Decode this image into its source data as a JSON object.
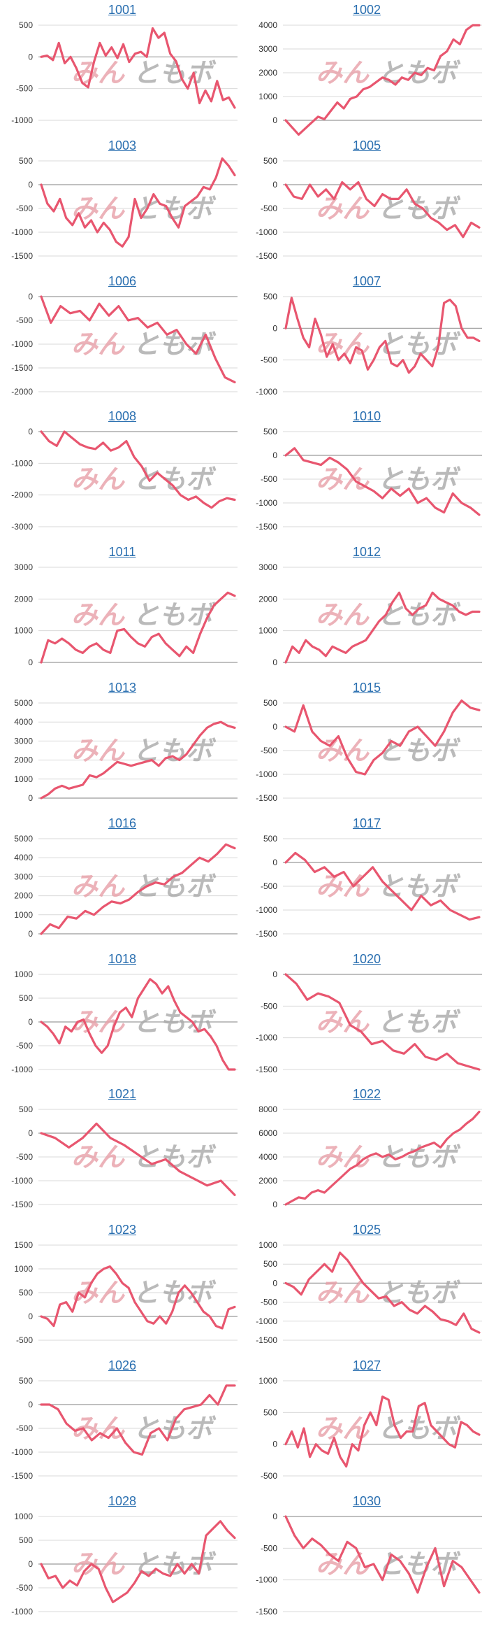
{
  "line_color": "#e8566f",
  "watermark": {
    "left": "みん",
    "right": "ともボ"
  },
  "chart_data": [
    {
      "type": "line",
      "title": "1001",
      "ylim": [
        -1000,
        500
      ],
      "yticks": [
        500,
        0,
        -500,
        -1000
      ],
      "y": [
        0,
        20,
        -50,
        220,
        -100,
        0,
        -180,
        -410,
        -480,
        -80,
        220,
        20,
        150,
        -20,
        200,
        -80,
        50,
        80,
        0,
        450,
        300,
        380,
        50,
        -70,
        -350,
        -500,
        -250,
        -730,
        -530,
        -700,
        -380,
        -680,
        -640,
        -800
      ]
    },
    {
      "type": "line",
      "title": "1002",
      "ylim": [
        0,
        4000
      ],
      "yticks": [
        4000,
        3000,
        2000,
        1000,
        0
      ],
      "y": [
        0,
        -300,
        -600,
        -350,
        -100,
        150,
        50,
        400,
        750,
        500,
        900,
        1000,
        1300,
        1400,
        1600,
        1800,
        1700,
        1500,
        1800,
        1700,
        2000,
        1900,
        2200,
        2100,
        2700,
        2900,
        3400,
        3200,
        3800,
        4000,
        4000
      ]
    },
    {
      "type": "line",
      "title": "1003",
      "ylim": [
        -1500,
        500
      ],
      "yticks": [
        500,
        0,
        -500,
        -1000,
        -1500
      ],
      "y": [
        0,
        -400,
        -560,
        -300,
        -700,
        -850,
        -600,
        -900,
        -750,
        -1000,
        -800,
        -950,
        -1200,
        -1300,
        -1100,
        -300,
        -700,
        -500,
        -200,
        -400,
        -450,
        -700,
        -900,
        -450,
        -350,
        -250,
        -50,
        -100,
        150,
        550,
        400,
        200
      ]
    },
    {
      "type": "line",
      "title": "1005",
      "ylim": [
        -1500,
        500
      ],
      "yticks": [
        500,
        0,
        -500,
        -1000,
        -1500
      ],
      "y": [
        0,
        -250,
        -300,
        0,
        -250,
        -100,
        -300,
        50,
        -100,
        50,
        -300,
        -450,
        -200,
        -300,
        -300,
        -100,
        -400,
        -500,
        -700,
        -800,
        -950,
        -850,
        -1100,
        -800,
        -900
      ]
    },
    {
      "type": "line",
      "title": "1006",
      "ylim": [
        -2000,
        0
      ],
      "yticks": [
        0,
        -500,
        -1000,
        -1500,
        -2000
      ],
      "y": [
        0,
        -550,
        -200,
        -350,
        -300,
        -500,
        -150,
        -400,
        -200,
        -500,
        -450,
        -650,
        -550,
        -800,
        -700,
        -1000,
        -1200,
        -800,
        -1300,
        -1700,
        -1800
      ]
    },
    {
      "type": "line",
      "title": "1007",
      "ylim": [
        -1000,
        500
      ],
      "yticks": [
        500,
        0,
        -500,
        -1000
      ],
      "y": [
        0,
        480,
        150,
        -150,
        -300,
        150,
        -100,
        -450,
        -250,
        -500,
        -400,
        -550,
        -300,
        -350,
        -650,
        -500,
        -300,
        -200,
        -550,
        -600,
        -500,
        -700,
        -600,
        -400,
        -500,
        -600,
        -300,
        400,
        450,
        350,
        0,
        -150,
        -150,
        -200
      ]
    },
    {
      "type": "line",
      "title": "1008",
      "ylim": [
        -3000,
        0
      ],
      "yticks": [
        0,
        -1000,
        -2000,
        -3000
      ],
      "y": [
        0,
        -300,
        -450,
        0,
        -200,
        -400,
        -500,
        -550,
        -350,
        -600,
        -500,
        -300,
        -800,
        -1100,
        -1550,
        -1300,
        -1500,
        -1700,
        -2000,
        -2150,
        -2050,
        -2250,
        -2400,
        -2200,
        -2100,
        -2150
      ]
    },
    {
      "type": "line",
      "title": "1010",
      "ylim": [
        -1500,
        500
      ],
      "yticks": [
        500,
        0,
        -500,
        -1000,
        -1500
      ],
      "y": [
        0,
        150,
        -100,
        -150,
        -200,
        -50,
        -150,
        -300,
        -550,
        -650,
        -750,
        -900,
        -700,
        -850,
        -700,
        -1000,
        -900,
        -1100,
        -1200,
        -800,
        -1000,
        -1100,
        -1250
      ]
    },
    {
      "type": "line",
      "title": "1011",
      "ylim": [
        0,
        3000
      ],
      "yticks": [
        3000,
        2000,
        1000,
        0
      ],
      "y": [
        0,
        700,
        600,
        750,
        600,
        400,
        300,
        500,
        600,
        400,
        300,
        1000,
        1050,
        800,
        600,
        500,
        800,
        900,
        600,
        400,
        200,
        500,
        300,
        900,
        1400,
        1800,
        2000,
        2200,
        2100
      ]
    },
    {
      "type": "line",
      "title": "1012",
      "ylim": [
        0,
        3000
      ],
      "yticks": [
        3000,
        2000,
        1000,
        0
      ],
      "y": [
        0,
        500,
        300,
        700,
        500,
        400,
        200,
        500,
        400,
        300,
        500,
        600,
        700,
        1000,
        1300,
        1500,
        1900,
        2200,
        1700,
        1500,
        1700,
        1800,
        2200,
        2000,
        1900,
        1800,
        1600,
        1500,
        1600,
        1600
      ]
    },
    {
      "type": "line",
      "title": "1013",
      "ylim": [
        0,
        5000
      ],
      "yticks": [
        5000,
        4000,
        3000,
        2000,
        1000,
        0
      ],
      "y": [
        0,
        200,
        500,
        650,
        500,
        600,
        700,
        1200,
        1100,
        1300,
        1600,
        1900,
        1800,
        1700,
        1800,
        1900,
        2000,
        1700,
        2100,
        2200,
        2000,
        2300,
        2800,
        3300,
        3700,
        3900,
        4000,
        3800,
        3700
      ]
    },
    {
      "type": "line",
      "title": "1015",
      "ylim": [
        -1500,
        500
      ],
      "yticks": [
        500,
        0,
        -500,
        -1000,
        -1500
      ],
      "y": [
        0,
        -100,
        450,
        -100,
        -300,
        -400,
        -200,
        -650,
        -950,
        -1000,
        -700,
        -550,
        -300,
        -400,
        -100,
        0,
        -200,
        -400,
        -100,
        300,
        550,
        400,
        350
      ]
    },
    {
      "type": "line",
      "title": "1016",
      "ylim": [
        0,
        5000
      ],
      "yticks": [
        5000,
        4000,
        3000,
        2000,
        1000,
        0
      ],
      "y": [
        0,
        500,
        300,
        900,
        800,
        1200,
        1000,
        1400,
        1700,
        1600,
        1800,
        2200,
        2500,
        2700,
        2600,
        3000,
        3200,
        3600,
        4000,
        3800,
        4200,
        4700,
        4500
      ]
    },
    {
      "type": "line",
      "title": "1017",
      "ylim": [
        -1500,
        500
      ],
      "yticks": [
        500,
        0,
        -500,
        -1000,
        -1500
      ],
      "y": [
        0,
        200,
        50,
        -200,
        -100,
        -300,
        -200,
        -500,
        -300,
        -100,
        -400,
        -600,
        -800,
        -1000,
        -700,
        -900,
        -800,
        -1000,
        -1100,
        -1200,
        -1150
      ]
    },
    {
      "type": "line",
      "title": "1018",
      "ylim": [
        -1000,
        1000
      ],
      "yticks": [
        1000,
        500,
        0,
        -500,
        -1000
      ],
      "y": [
        0,
        -100,
        -250,
        -450,
        -100,
        -200,
        0,
        50,
        -250,
        -500,
        -650,
        -500,
        -100,
        200,
        300,
        100,
        500,
        700,
        900,
        800,
        600,
        750,
        450,
        200,
        100,
        0,
        -200,
        -150,
        -300,
        -500,
        -800,
        -1000,
        -1000
      ]
    },
    {
      "type": "line",
      "title": "1020",
      "ylim": [
        -1500,
        0
      ],
      "yticks": [
        0,
        -500,
        -1000,
        -1500
      ],
      "y": [
        0,
        -150,
        -400,
        -300,
        -350,
        -450,
        -800,
        -900,
        -1100,
        -1050,
        -1200,
        -1250,
        -1100,
        -1300,
        -1350,
        -1250,
        -1400,
        -1450,
        -1500
      ]
    },
    {
      "type": "line",
      "title": "1021",
      "ylim": [
        -1500,
        500
      ],
      "yticks": [
        500,
        0,
        -500,
        -1000,
        -1500
      ],
      "y": [
        0,
        -100,
        -300,
        -100,
        200,
        -100,
        -250,
        -450,
        -650,
        -550,
        -800,
        -950,
        -1100,
        -1000,
        -1300
      ]
    },
    {
      "type": "line",
      "title": "1022",
      "ylim": [
        0,
        8000
      ],
      "yticks": [
        8000,
        6000,
        4000,
        2000,
        0
      ],
      "y": [
        0,
        300,
        600,
        500,
        1000,
        1200,
        1000,
        1500,
        2000,
        2500,
        3000,
        3300,
        3800,
        4100,
        4300,
        4000,
        4200,
        3800,
        4000,
        4300,
        4500,
        4800,
        5000,
        5200,
        4800,
        5500,
        6000,
        6300,
        6800,
        7200,
        7800
      ]
    },
    {
      "type": "line",
      "title": "1023",
      "ylim": [
        -500,
        1500
      ],
      "yticks": [
        1500,
        1000,
        500,
        0,
        -500
      ],
      "y": [
        0,
        -50,
        -200,
        250,
        300,
        100,
        500,
        400,
        700,
        900,
        1000,
        1050,
        900,
        700,
        600,
        300,
        100,
        -100,
        -150,
        0,
        -150,
        100,
        500,
        650,
        500,
        300,
        100,
        0,
        -200,
        -250,
        150,
        200
      ]
    },
    {
      "type": "line",
      "title": "1025",
      "ylim": [
        -1500,
        1000
      ],
      "yticks": [
        1000,
        500,
        0,
        -500,
        -1000,
        -1500
      ],
      "y": [
        0,
        -100,
        -300,
        100,
        300,
        500,
        300,
        800,
        600,
        300,
        0,
        -200,
        -400,
        -350,
        -600,
        -500,
        -700,
        -800,
        -600,
        -750,
        -950,
        -1000,
        -1100,
        -800,
        -1200,
        -1300
      ]
    },
    {
      "type": "line",
      "title": "1026",
      "ylim": [
        -1500,
        500
      ],
      "yticks": [
        500,
        0,
        -500,
        -1000,
        -1500
      ],
      "y": [
        0,
        0,
        -100,
        -400,
        -550,
        -500,
        -750,
        -600,
        -700,
        -500,
        -800,
        -1000,
        -1050,
        -600,
        -500,
        -750,
        -300,
        -100,
        -50,
        0,
        200,
        0,
        400,
        400
      ]
    },
    {
      "type": "line",
      "title": "1027",
      "ylim": [
        -500,
        1000
      ],
      "yticks": [
        1000,
        500,
        0,
        -500
      ],
      "y": [
        0,
        200,
        -50,
        250,
        -200,
        0,
        -100,
        -150,
        100,
        -200,
        -350,
        0,
        -100,
        300,
        500,
        300,
        750,
        700,
        300,
        100,
        200,
        200,
        600,
        650,
        300,
        200,
        100,
        0,
        -50,
        350,
        300,
        200,
        150
      ]
    },
    {
      "type": "line",
      "title": "1028",
      "ylim": [
        -1000,
        1000
      ],
      "yticks": [
        1000,
        500,
        0,
        -500,
        -1000
      ],
      "y": [
        0,
        -300,
        -250,
        -500,
        -350,
        -450,
        -150,
        0,
        -100,
        -500,
        -800,
        -700,
        -600,
        -400,
        -150,
        -250,
        -100,
        -200,
        -250,
        0,
        -200,
        0,
        -200,
        600,
        750,
        900,
        700,
        550
      ]
    },
    {
      "type": "line",
      "title": "1030",
      "ylim": [
        -1500,
        0
      ],
      "yticks": [
        0,
        -500,
        -1000,
        -1500
      ],
      "y": [
        0,
        -300,
        -500,
        -350,
        -450,
        -600,
        -700,
        -400,
        -500,
        -800,
        -750,
        -1000,
        -600,
        -700,
        -900,
        -1200,
        -800,
        -500,
        -1100,
        -700,
        -800,
        -1000,
        -1200
      ]
    }
  ]
}
